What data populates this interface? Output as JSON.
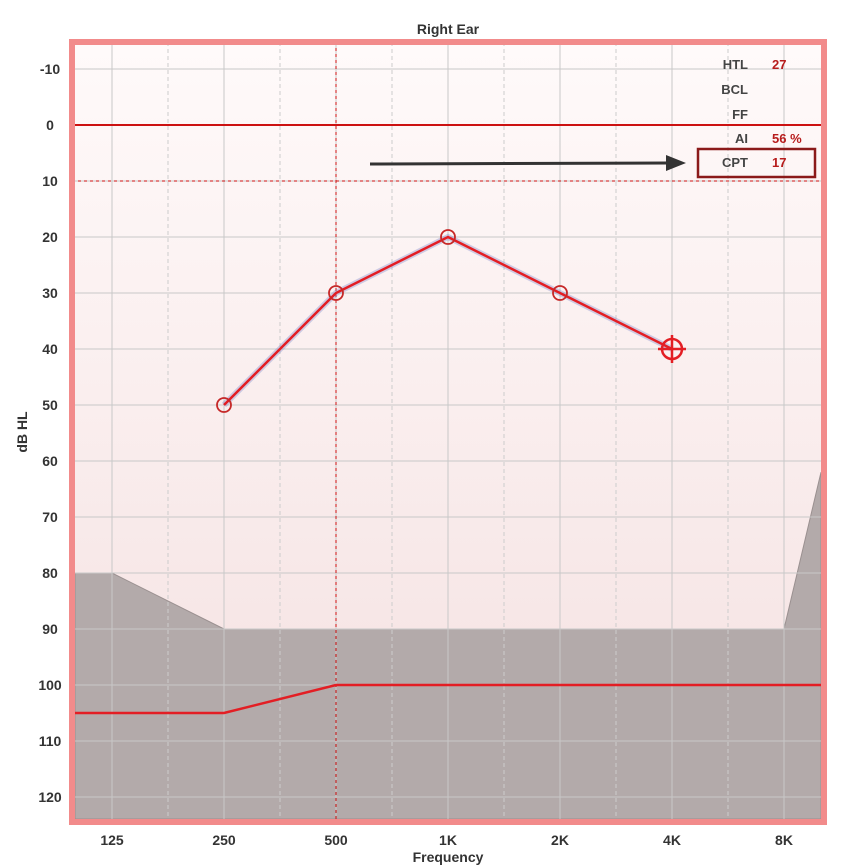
{
  "chart_data": {
    "type": "line",
    "title": "Right Ear",
    "xlabel": "Frequency",
    "ylabel": "dB HL",
    "categories": [
      "125",
      "250",
      "500",
      "1K",
      "2K",
      "4K",
      "8K"
    ],
    "yticks": [
      "-10",
      "0",
      "10",
      "20",
      "30",
      "40",
      "50",
      "60",
      "70",
      "80",
      "90",
      "100",
      "110",
      "120"
    ],
    "ylim": [
      -15,
      125
    ],
    "y_inverted": true,
    "grid": true,
    "series": [
      {
        "points": [
          {
            "x": "250",
            "y": 50
          },
          {
            "x": "500",
            "y": 30
          },
          {
            "x": "1K",
            "y": 20
          },
          {
            "x": "2K",
            "y": 30
          },
          {
            "x": "4K",
            "y": 40
          }
        ]
      }
    ],
    "shaded_region_upper_boundary": [
      {
        "x": "<125",
        "y": 80
      },
      {
        "x": "125",
        "y": 80
      },
      {
        "x": "250",
        "y": 90
      },
      {
        "x": "500",
        "y": 90
      },
      {
        "x": "1K",
        "y": 90
      },
      {
        "x": "2K",
        "y": 90
      },
      {
        "x": "4K",
        "y": 90
      },
      {
        "x": "8K",
        "y": 90
      },
      {
        "x": ">8K",
        "y": 62
      }
    ],
    "limit_line": [
      {
        "x": "<125",
        "y": 105
      },
      {
        "x": "250",
        "y": 105
      },
      {
        "x": "500",
        "y": 100
      },
      {
        "x": ">8K",
        "y": 100
      }
    ],
    "reference_line_y": 0,
    "dashed_marker": {
      "y": 10,
      "x": "500"
    },
    "legend_placement": "top-right"
  },
  "legend": {
    "items": [
      {
        "label": "HTL",
        "value": "27"
      },
      {
        "label": "BCL",
        "value": ""
      },
      {
        "label": "FF",
        "value": ""
      },
      {
        "label": "AI",
        "value": "56 %"
      },
      {
        "label": "CPT",
        "value": "17"
      }
    ],
    "highlighted": "CPT"
  },
  "colors": {
    "frame": "#f28b8b",
    "series": "#e31e24",
    "shaded": "#b3aaaa",
    "background_top": "#fffafa",
    "background_bottom": "#f4e0e0",
    "grid": "#c8c8c8",
    "highlight_box": "#8b1a1a",
    "arrow": "#333333"
  }
}
